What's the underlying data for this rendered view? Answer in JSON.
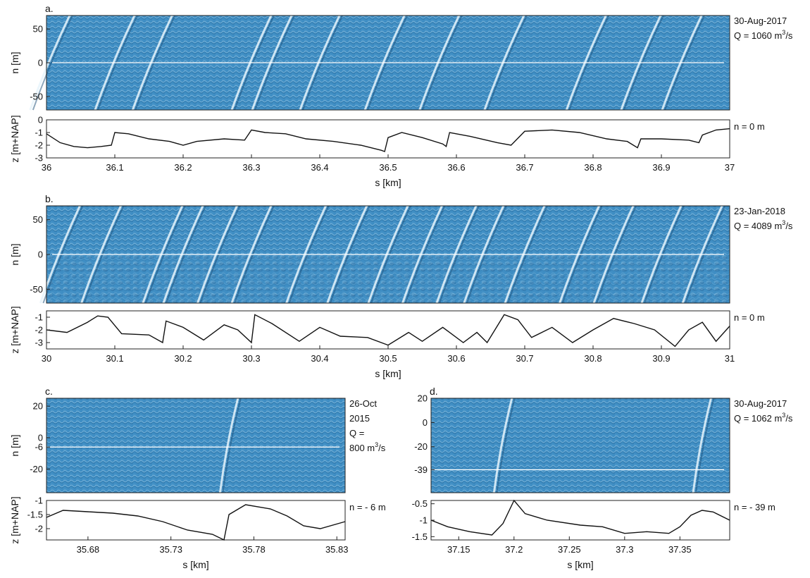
{
  "chart_data": [
    {
      "id": "a",
      "type": "heatmap",
      "letter": "a.",
      "annotation_lines": [
        "30-Aug-2017",
        "Q = 1060 m"
      ],
      "annotation_sup": "3",
      "annotation_tail": "/s",
      "ylabel": "n [m]",
      "xlim": [
        36,
        37
      ],
      "ylim": [
        -70,
        70
      ],
      "yticks": [
        "50",
        "0",
        "-50"
      ],
      "ytick_values": [
        50,
        0,
        -50
      ],
      "transect_n": 0,
      "crests": [
        36.005,
        36.1,
        36.155,
        36.3,
        36.33,
        36.4,
        36.495,
        36.575,
        36.67,
        36.79,
        36.87,
        36.93
      ]
    },
    {
      "id": "a2",
      "type": "line",
      "ylabel": "z [m+NAP]",
      "xlabel": "s [km]",
      "annotation": "n = 0 m",
      "xlim": [
        36,
        37
      ],
      "ylim": [
        -3,
        0
      ],
      "xticks": [
        "36",
        "36.1",
        "36.2",
        "36.3",
        "36.4",
        "36.5",
        "36.6",
        "36.7",
        "36.8",
        "36.9",
        "37"
      ],
      "xtick_values": [
        36,
        36.1,
        36.2,
        36.3,
        36.4,
        36.5,
        36.6,
        36.7,
        36.8,
        36.9,
        37
      ],
      "yticks": [
        "0",
        "-1",
        "-2",
        "-3"
      ],
      "ytick_values": [
        0,
        -1,
        -2,
        -3
      ],
      "x": [
        36.0,
        36.02,
        36.04,
        36.06,
        36.08,
        36.095,
        36.1,
        36.12,
        36.15,
        36.18,
        36.2,
        36.22,
        36.26,
        36.29,
        36.3,
        36.32,
        36.35,
        36.38,
        36.42,
        36.46,
        36.49,
        36.495,
        36.5,
        36.52,
        36.55,
        36.58,
        36.585,
        36.59,
        36.62,
        36.66,
        36.68,
        36.7,
        36.74,
        36.78,
        36.82,
        36.85,
        36.865,
        36.87,
        36.9,
        36.94,
        36.955,
        36.96,
        36.98,
        37.0
      ],
      "y": [
        -1.1,
        -1.8,
        -2.1,
        -2.2,
        -2.1,
        -2.0,
        -1.0,
        -1.1,
        -1.5,
        -1.7,
        -2.0,
        -1.7,
        -1.5,
        -1.6,
        -0.8,
        -1.0,
        -1.1,
        -1.5,
        -1.7,
        -2.0,
        -2.4,
        -2.5,
        -1.4,
        -1.0,
        -1.4,
        -1.9,
        -2.1,
        -1.0,
        -1.3,
        -1.8,
        -2.0,
        -0.9,
        -0.8,
        -1.0,
        -1.5,
        -1.7,
        -2.2,
        -1.5,
        -1.5,
        -1.6,
        -1.8,
        -1.2,
        -0.8,
        -0.7
      ]
    },
    {
      "id": "b",
      "type": "heatmap",
      "letter": "b.",
      "annotation_lines": [
        "23-Jan-2018",
        "Q = 4089 m"
      ],
      "annotation_sup": "3",
      "annotation_tail": "/s",
      "ylabel": "n [m]",
      "xlim": [
        30,
        31
      ],
      "ylim": [
        -70,
        70
      ],
      "yticks": [
        "50",
        "0",
        "-50"
      ],
      "ytick_values": [
        50,
        0,
        -50
      ],
      "transect_n": 0,
      "crests": [
        30.02,
        30.08,
        30.17,
        30.2,
        30.25,
        30.3,
        30.38,
        30.44,
        30.5,
        30.55,
        30.6,
        30.64,
        30.7,
        30.78,
        30.83,
        30.9,
        30.96
      ]
    },
    {
      "id": "b2",
      "type": "line",
      "ylabel": "z [m+NAP]",
      "xlabel": "s [km]",
      "annotation": "n = 0 m",
      "xlim": [
        30,
        31
      ],
      "ylim": [
        -3.5,
        -0.5
      ],
      "xticks": [
        "30",
        "30.1",
        "30.2",
        "30.3",
        "30.4",
        "30.5",
        "30.6",
        "30.7",
        "30.8",
        "30.9",
        "31"
      ],
      "xtick_values": [
        30,
        30.1,
        30.2,
        30.3,
        30.4,
        30.5,
        30.6,
        30.7,
        30.8,
        30.9,
        31
      ],
      "yticks": [
        "-1",
        "-2",
        "-3"
      ],
      "ytick_values": [
        -1,
        -2,
        -3
      ],
      "x": [
        30.0,
        30.03,
        30.06,
        30.075,
        30.09,
        30.11,
        30.15,
        30.17,
        30.175,
        30.2,
        30.23,
        30.26,
        30.28,
        30.3,
        30.305,
        30.33,
        30.37,
        30.4,
        30.43,
        30.47,
        30.5,
        30.53,
        30.55,
        30.58,
        30.61,
        30.63,
        30.645,
        30.67,
        30.69,
        30.71,
        30.74,
        30.77,
        30.8,
        30.83,
        30.86,
        30.89,
        30.92,
        30.94,
        30.96,
        30.98,
        31.0
      ],
      "y": [
        -2.0,
        -2.2,
        -1.4,
        -0.9,
        -1.0,
        -2.3,
        -2.4,
        -3.0,
        -1.3,
        -1.8,
        -2.8,
        -1.6,
        -2.0,
        -3.0,
        -0.8,
        -1.5,
        -2.9,
        -1.8,
        -2.5,
        -2.6,
        -3.2,
        -2.2,
        -2.9,
        -1.8,
        -3.0,
        -2.2,
        -3.0,
        -0.8,
        -1.2,
        -2.6,
        -1.8,
        -3.0,
        -2.0,
        -1.1,
        -1.5,
        -2.0,
        -3.3,
        -2.0,
        -1.4,
        -2.9,
        -1.7
      ]
    },
    {
      "id": "c",
      "type": "heatmap",
      "letter": "c.",
      "annotation_lines": [
        "26-Oct",
        "2015",
        "Q =",
        "800 m"
      ],
      "annotation_sup": "3",
      "annotation_tail": "/s",
      "ylabel": "n [m]",
      "xlim": [
        35.655,
        35.835
      ],
      "ylim": [
        -35,
        25
      ],
      "yticks": [
        "20",
        "0",
        "-6",
        "-20"
      ],
      "ytick_values": [
        20,
        0,
        -6,
        -20
      ],
      "transect_n": -6,
      "crests": [
        35.765
      ]
    },
    {
      "id": "c2",
      "type": "line",
      "ylabel": "z [m+NAP]",
      "xlabel": "s [km]",
      "annotation": "n = - 6 m",
      "xlim": [
        35.655,
        35.835
      ],
      "ylim": [
        -2.4,
        -1
      ],
      "xticks": [
        "35.68",
        "35.73",
        "35.78",
        "35.83"
      ],
      "xtick_values": [
        35.68,
        35.73,
        35.78,
        35.83
      ],
      "yticks": [
        "-1",
        "-1.5",
        "-2"
      ],
      "ytick_values": [
        -1,
        -1.5,
        -2
      ],
      "x": [
        35.655,
        35.665,
        35.68,
        35.695,
        35.71,
        35.725,
        35.74,
        35.755,
        35.762,
        35.765,
        35.775,
        35.79,
        35.8,
        35.81,
        35.82,
        35.835
      ],
      "y": [
        -1.6,
        -1.35,
        -1.4,
        -1.45,
        -1.55,
        -1.75,
        -2.05,
        -2.2,
        -2.4,
        -1.5,
        -1.15,
        -1.3,
        -1.55,
        -1.9,
        -2.0,
        -1.75
      ]
    },
    {
      "id": "d",
      "type": "heatmap",
      "letter": "d.",
      "annotation_lines": [
        "30-Aug-2017",
        "Q = 1062 m"
      ],
      "annotation_sup": "3",
      "annotation_tail": "/s",
      "ylabel": "",
      "xlim": [
        37.125,
        37.395
      ],
      "ylim": [
        -58,
        20
      ],
      "yticks": [
        "20",
        "0",
        "-20",
        "-39"
      ],
      "ytick_values": [
        20,
        0,
        -20,
        -39
      ],
      "transect_n": -39,
      "crests": [
        37.19,
        37.37
      ]
    },
    {
      "id": "d2",
      "type": "line",
      "ylabel": "",
      "xlabel": "s [km]",
      "annotation": "n = - 39 m",
      "xlim": [
        37.125,
        37.395
      ],
      "ylim": [
        -1.6,
        -0.4
      ],
      "xticks": [
        "37.15",
        "37.2",
        "37.25",
        "37.3",
        "37.35"
      ],
      "xtick_values": [
        37.15,
        37.2,
        37.25,
        37.3,
        37.35
      ],
      "yticks": [
        "-0.5",
        "-1",
        "-1.5"
      ],
      "ytick_values": [
        -0.5,
        -1,
        -1.5
      ],
      "x": [
        37.125,
        37.14,
        37.16,
        37.18,
        37.19,
        37.2,
        37.21,
        37.23,
        37.26,
        37.28,
        37.3,
        37.32,
        37.34,
        37.35,
        37.36,
        37.37,
        37.38,
        37.395
      ],
      "y": [
        -1.0,
        -1.2,
        -1.35,
        -1.45,
        -1.1,
        -0.4,
        -0.8,
        -1.0,
        -1.15,
        -1.2,
        -1.4,
        -1.35,
        -1.4,
        -1.2,
        -0.85,
        -0.7,
        -0.75,
        -1.0
      ]
    }
  ]
}
